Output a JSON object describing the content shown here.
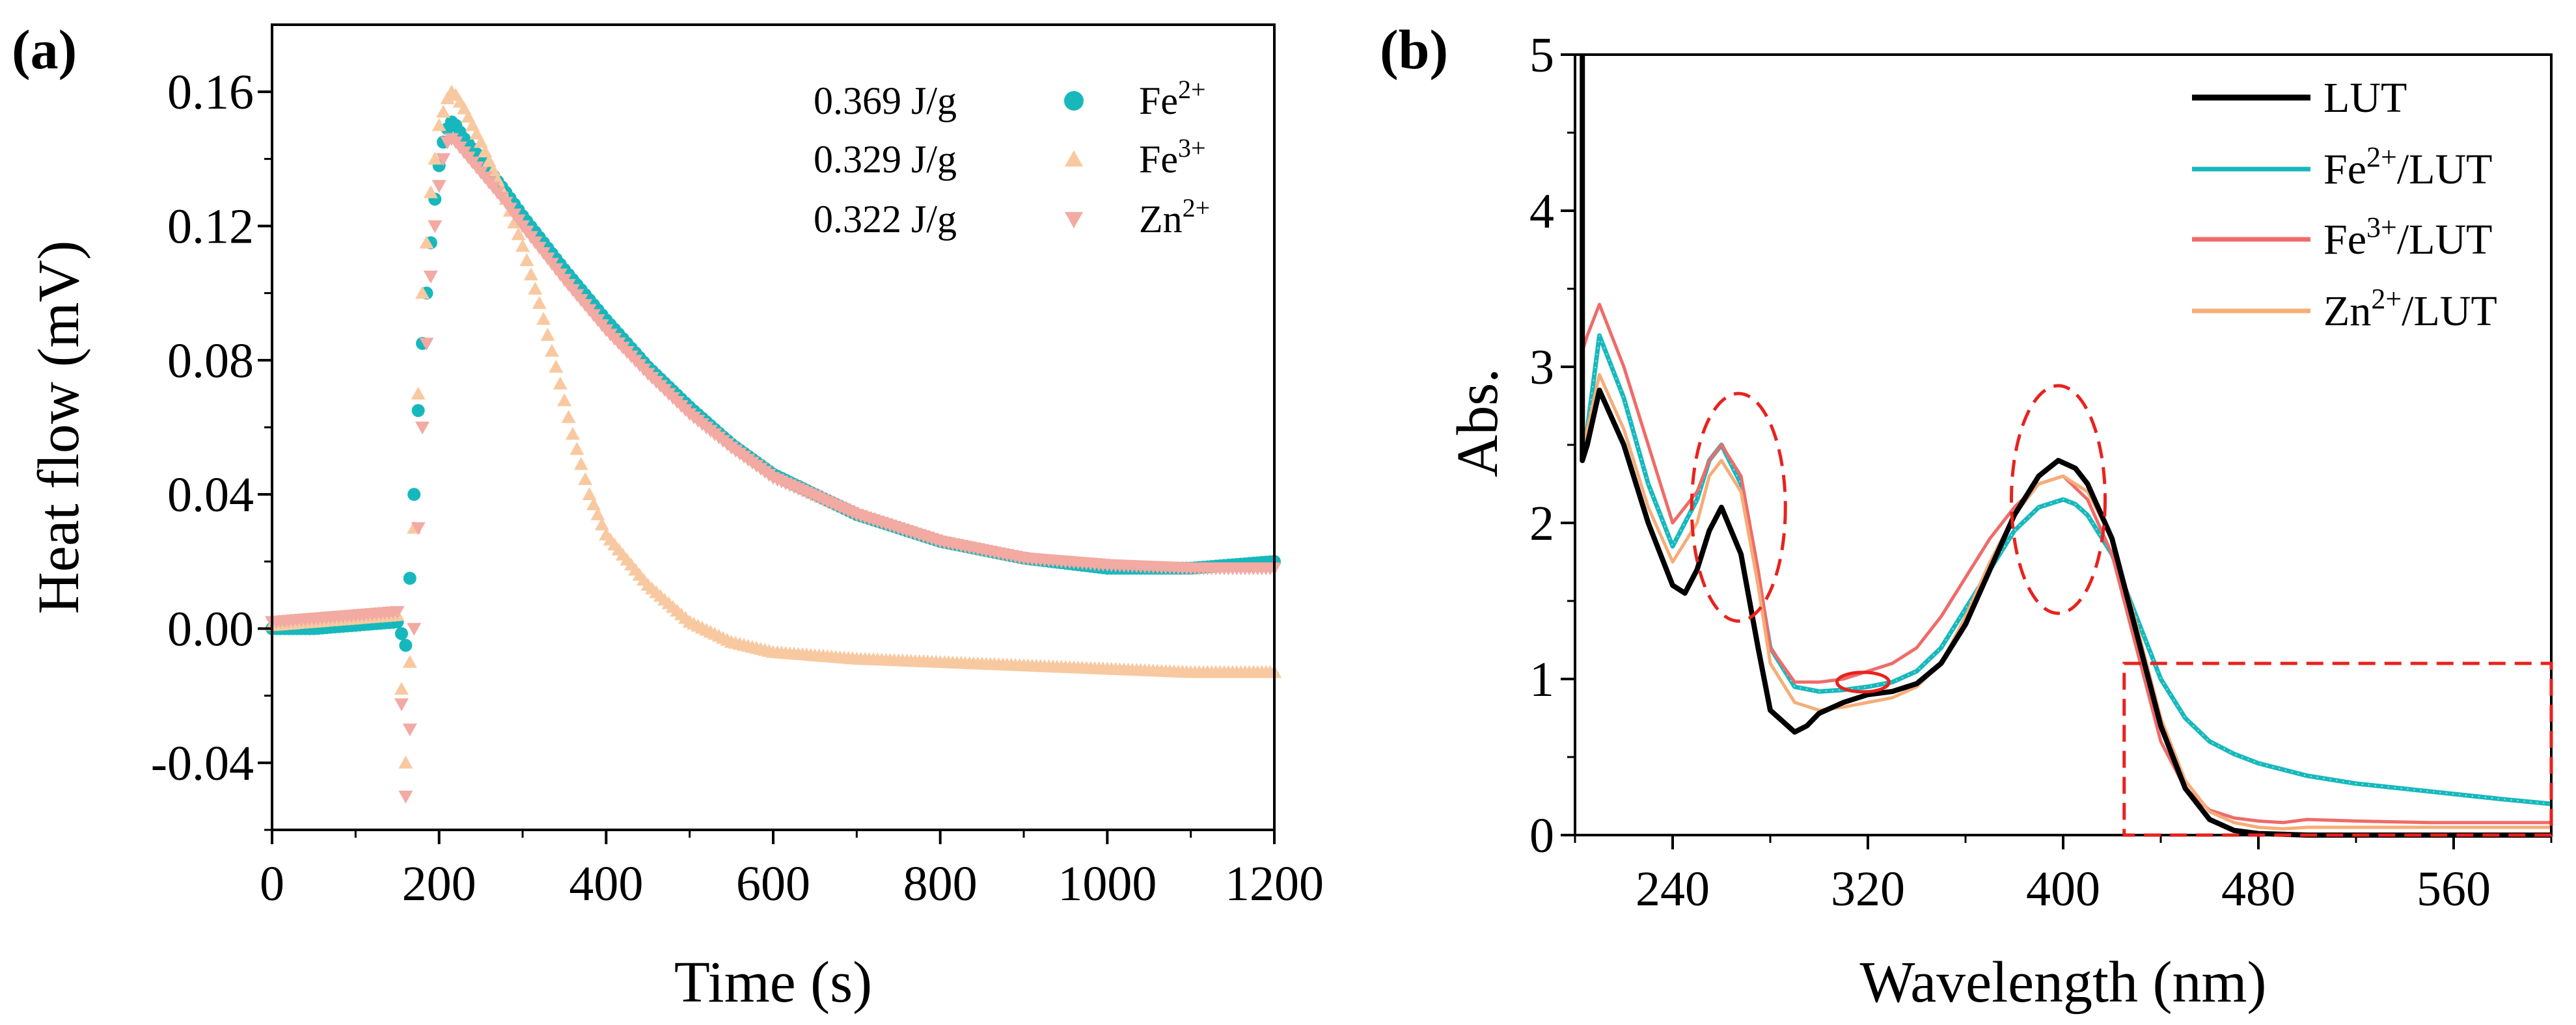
{
  "panel_a": {
    "label": "(a)"
  },
  "panel_b": {
    "label": "(b)"
  },
  "colors": {
    "cyan": "#17b8bd",
    "cyan_light": "#9ee3e4",
    "peach": "#f8c9a0",
    "pink": "#f2aaa3",
    "red": "#ef6b68",
    "orange": "#f5ad79",
    "black": "#000000",
    "annotation_red": "#e8221e"
  },
  "chart_data": [
    {
      "type": "scatter",
      "title": "",
      "xlabel": "Time (s)",
      "ylabel": "Heat flow (mV)",
      "xlim": [
        0,
        1200
      ],
      "ylim": [
        -0.06,
        0.18
      ],
      "xticks": [
        0,
        200,
        400,
        600,
        800,
        1000,
        1200
      ],
      "xtick_labels": [
        "0",
        "200",
        "400",
        "600",
        "800",
        "1000",
        "1200"
      ],
      "yticks": [
        -0.04,
        0.0,
        0.04,
        0.08,
        0.12,
        0.16
      ],
      "ytick_labels": [
        "-0.04",
        "0.00",
        "0.04",
        "0.08",
        "0.12",
        "0.16"
      ],
      "legend_position": "top-right",
      "series": [
        {
          "name": "Fe2+",
          "label_base": "Fe",
          "label_sup": "2+",
          "energy": "0.369 J/g",
          "marker": "sphere",
          "color": "#17b8bd",
          "x": [
            0,
            50,
            100,
            150,
            160,
            165,
            170,
            175,
            180,
            185,
            190,
            195,
            200,
            205,
            210,
            215,
            220,
            230,
            250,
            280,
            300,
            350,
            400,
            450,
            500,
            550,
            600,
            700,
            800,
            900,
            1000,
            1100,
            1200
          ],
          "y": [
            0.0,
            0.0,
            0.001,
            0.002,
            -0.005,
            0.015,
            0.04,
            0.065,
            0.085,
            0.1,
            0.115,
            0.128,
            0.138,
            0.145,
            0.149,
            0.151,
            0.15,
            0.146,
            0.14,
            0.13,
            0.123,
            0.107,
            0.092,
            0.078,
            0.066,
            0.055,
            0.046,
            0.034,
            0.026,
            0.021,
            0.018,
            0.018,
            0.02
          ]
        },
        {
          "name": "Fe3+",
          "label_base": "Fe",
          "label_sup": "3+",
          "energy": "0.329 J/g",
          "marker": "triangle-up",
          "color": "#f8c9a0",
          "x": [
            0,
            50,
            100,
            150,
            160,
            165,
            170,
            175,
            180,
            190,
            200,
            210,
            215,
            220,
            230,
            250,
            280,
            300,
            320,
            340,
            360,
            380,
            400,
            420,
            450,
            500,
            550,
            600,
            700,
            800,
            900,
            1000,
            1100,
            1200
          ],
          "y": [
            0.001,
            0.002,
            0.003,
            0.004,
            -0.04,
            -0.01,
            0.03,
            0.07,
            0.1,
            0.13,
            0.15,
            0.158,
            0.16,
            0.159,
            0.155,
            0.145,
            0.128,
            0.114,
            0.097,
            0.078,
            0.058,
            0.04,
            0.028,
            0.022,
            0.013,
            0.002,
            -0.004,
            -0.007,
            -0.009,
            -0.01,
            -0.011,
            -0.012,
            -0.013,
            -0.013
          ]
        },
        {
          "name": "Zn2+",
          "label_base": "Zn",
          "label_sup": "2+",
          "energy": "0.322 J/g",
          "marker": "triangle-down",
          "color": "#f2aaa3",
          "x": [
            0,
            50,
            100,
            150,
            160,
            165,
            170,
            175,
            180,
            185,
            190,
            195,
            200,
            205,
            210,
            215,
            220,
            230,
            250,
            280,
            300,
            350,
            400,
            450,
            500,
            550,
            600,
            700,
            800,
            900,
            1000,
            1100,
            1200
          ],
          "y": [
            0.002,
            0.003,
            0.004,
            0.005,
            -0.05,
            -0.03,
            0.0,
            0.03,
            0.06,
            0.085,
            0.105,
            0.12,
            0.132,
            0.14,
            0.145,
            0.146,
            0.145,
            0.142,
            0.136,
            0.127,
            0.12,
            0.104,
            0.089,
            0.076,
            0.064,
            0.054,
            0.045,
            0.034,
            0.026,
            0.021,
            0.019,
            0.018,
            0.018
          ]
        }
      ],
      "annotations": [
        "0.369 J/g",
        "0.329 J/g",
        "0.322 J/g"
      ]
    },
    {
      "type": "line",
      "title": "",
      "xlabel": "Wavelength (nm)",
      "ylabel": "Abs.",
      "xlim": [
        200,
        600
      ],
      "ylim": [
        0,
        5
      ],
      "xticks": [
        240,
        320,
        400,
        480,
        560
      ],
      "xtick_labels": [
        "240",
        "320",
        "400",
        "480",
        "560"
      ],
      "yticks": [
        0,
        1,
        2,
        3,
        4,
        5
      ],
      "ytick_labels": [
        "0",
        "1",
        "2",
        "3",
        "4",
        "5"
      ],
      "legend_position": "top-right",
      "series": [
        {
          "name": "LUT",
          "label_base": "LUT",
          "label_sup": "",
          "label_tail": "",
          "color": "#000000",
          "x": [
            203,
            205,
            210,
            220,
            230,
            240,
            245,
            250,
            255,
            260,
            268,
            275,
            280,
            290,
            295,
            300,
            310,
            320,
            330,
            340,
            350,
            360,
            370,
            380,
            390,
            398,
            405,
            410,
            420,
            430,
            440,
            450,
            460,
            470,
            480,
            490,
            500,
            520,
            550,
            580,
            600
          ],
          "y": [
            2.4,
            2.5,
            2.85,
            2.5,
            2.0,
            1.6,
            1.55,
            1.7,
            1.95,
            2.1,
            1.8,
            1.2,
            0.8,
            0.66,
            0.7,
            0.78,
            0.85,
            0.9,
            0.92,
            0.97,
            1.1,
            1.35,
            1.7,
            2.05,
            2.3,
            2.4,
            2.35,
            2.25,
            1.9,
            1.3,
            0.7,
            0.3,
            0.1,
            0.03,
            0.01,
            0.005,
            0.0,
            0.0,
            0.0,
            0.0,
            0.0
          ]
        },
        {
          "name": "Fe2+/LUT",
          "label_base": "Fe",
          "label_sup": "2+",
          "label_tail": "/LUT",
          "color": "#17b8bd",
          "x": [
            203,
            205,
            210,
            220,
            230,
            240,
            250,
            255,
            260,
            268,
            275,
            280,
            290,
            300,
            310,
            320,
            330,
            340,
            350,
            360,
            370,
            380,
            390,
            400,
            405,
            410,
            420,
            430,
            440,
            450,
            460,
            470,
            480,
            490,
            500,
            520,
            550,
            580,
            600
          ],
          "y": [
            2.5,
            2.6,
            3.2,
            2.8,
            2.25,
            1.85,
            2.15,
            2.4,
            2.5,
            2.25,
            1.65,
            1.2,
            0.95,
            0.92,
            0.93,
            0.95,
            0.98,
            1.05,
            1.2,
            1.45,
            1.7,
            1.95,
            2.1,
            2.15,
            2.12,
            2.05,
            1.8,
            1.4,
            1.0,
            0.75,
            0.6,
            0.52,
            0.46,
            0.42,
            0.38,
            0.33,
            0.28,
            0.23,
            0.2
          ]
        },
        {
          "name": "Fe3+/LUT",
          "label_base": "Fe",
          "label_sup": "3+",
          "label_tail": "/LUT",
          "color": "#ef6b68",
          "x": [
            203,
            205,
            210,
            220,
            230,
            240,
            250,
            255,
            260,
            268,
            275,
            280,
            290,
            300,
            310,
            320,
            330,
            340,
            350,
            360,
            370,
            380,
            390,
            400,
            410,
            420,
            430,
            440,
            450,
            460,
            470,
            480,
            490,
            500,
            520,
            550,
            580,
            600
          ],
          "y": [
            3.1,
            3.2,
            3.4,
            3.0,
            2.5,
            2.0,
            2.2,
            2.4,
            2.5,
            2.3,
            1.7,
            1.2,
            0.98,
            0.98,
            1.0,
            1.05,
            1.1,
            1.2,
            1.4,
            1.65,
            1.9,
            2.1,
            2.25,
            2.3,
            2.15,
            1.8,
            1.2,
            0.6,
            0.3,
            0.16,
            0.11,
            0.09,
            0.08,
            0.1,
            0.09,
            0.08,
            0.08,
            0.08
          ]
        },
        {
          "name": "Zn2+/LUT",
          "label_base": "Zn",
          "label_sup": "2+",
          "label_tail": "/LUT",
          "color": "#f5ad79",
          "x": [
            203,
            205,
            210,
            220,
            230,
            240,
            250,
            255,
            260,
            268,
            275,
            280,
            290,
            300,
            310,
            320,
            330,
            340,
            350,
            360,
            370,
            380,
            390,
            400,
            410,
            420,
            430,
            440,
            450,
            460,
            470,
            480,
            490,
            500,
            520,
            550,
            580,
            600
          ],
          "y": [
            2.5,
            2.6,
            2.95,
            2.6,
            2.1,
            1.75,
            2.0,
            2.3,
            2.4,
            2.2,
            1.6,
            1.1,
            0.85,
            0.8,
            0.82,
            0.85,
            0.88,
            0.95,
            1.1,
            1.4,
            1.75,
            2.05,
            2.25,
            2.3,
            2.2,
            1.9,
            1.35,
            0.75,
            0.35,
            0.15,
            0.08,
            0.05,
            0.04,
            0.05,
            0.05,
            0.05,
            0.05,
            0.05
          ]
        }
      ],
      "annotations": [
        "dashed ellipse at 268 nm",
        "dashed ellipse at 398 nm",
        "ellipse near 318 nm",
        "dashed box 425–600 nm, 0–1.1 Abs"
      ]
    }
  ]
}
